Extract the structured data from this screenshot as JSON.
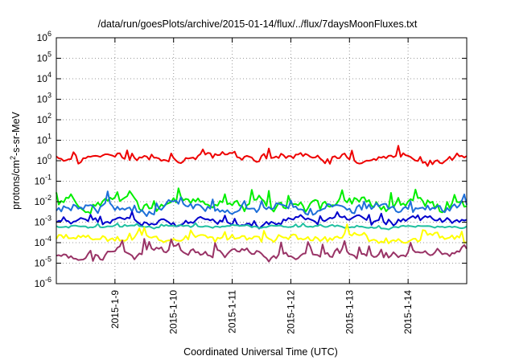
{
  "chart_data": {
    "type": "line",
    "title": "/data/run/goesPlots/archive/2015-01-14/flux/../flux/7daysMoonFluxes.txt",
    "xlabel": "Coordinated Universal Time (UTC)",
    "ylabel": {
      "main": "protons/cm",
      "sup": "2",
      "rest": "-s-sr-MeV"
    },
    "yscale": "log",
    "ylim": [
      1e-06,
      1000000.0
    ],
    "xlim": [
      "2015-01-08T00:00",
      "2015-01-15T00:00"
    ],
    "grid": true,
    "legend": "none",
    "y_ticks": [
      {
        "base": "10",
        "exp": "-6",
        "value": 1e-06
      },
      {
        "base": "10",
        "exp": "-5",
        "value": 1e-05
      },
      {
        "base": "10",
        "exp": "-4",
        "value": 0.0001
      },
      {
        "base": "10",
        "exp": "-3",
        "value": 0.001
      },
      {
        "base": "10",
        "exp": "-2",
        "value": 0.01
      },
      {
        "base": "10",
        "exp": "-1",
        "value": 0.1
      },
      {
        "base": "10",
        "exp": "0",
        "value": 1
      },
      {
        "base": "10",
        "exp": "1",
        "value": 10
      },
      {
        "base": "10",
        "exp": "2",
        "value": 100
      },
      {
        "base": "10",
        "exp": "3",
        "value": 1000
      },
      {
        "base": "10",
        "exp": "4",
        "value": 10000
      },
      {
        "base": "10",
        "exp": "5",
        "value": 100000
      },
      {
        "base": "10",
        "exp": "6",
        "value": 1000000
      }
    ],
    "x_ticks": [
      {
        "label": "2015-1-9",
        "value": "2015-01-09T00:00"
      },
      {
        "label": "2015-1-10",
        "value": "2015-01-10T00:00"
      },
      {
        "label": "2015-1-11",
        "value": "2015-01-11T00:00"
      },
      {
        "label": "2015-1-12",
        "value": "2015-01-12T00:00"
      },
      {
        "label": "2015-1-13",
        "value": "2015-01-13T00:00"
      },
      {
        "label": "2015-1-14",
        "value": "2015-01-14T00:00"
      }
    ],
    "series": [
      {
        "color": "#ee0000",
        "level_log10": 0.2,
        "variability_log10": 0.3
      },
      {
        "color": "#00ee00",
        "level_log10": -2.1,
        "variability_log10": 0.45
      },
      {
        "color": "#1e6fd9",
        "level_log10": -2.25,
        "variability_log10": 0.35
      },
      {
        "color": "#0000cc",
        "level_log10": -2.9,
        "variability_log10": 0.25
      },
      {
        "color": "#20c0a0",
        "level_log10": -3.2,
        "variability_log10": 0.1
      },
      {
        "color": "#ffff00",
        "level_log10": -3.75,
        "variability_log10": 0.3
      },
      {
        "color": "#993366",
        "level_log10": -4.5,
        "variability_log10": 0.35
      }
    ]
  }
}
